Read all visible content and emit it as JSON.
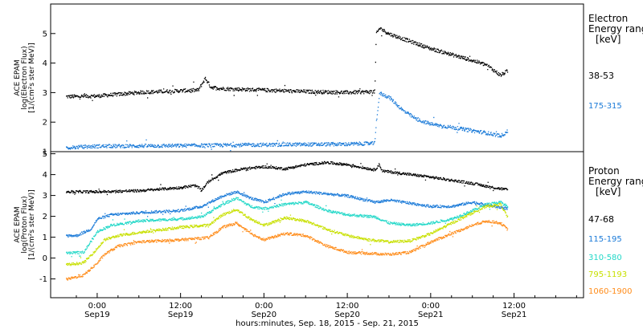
{
  "chart_data": [
    {
      "type": "scatter",
      "ylabel": [
        "ACE EPAM",
        "log(Electron Flux)",
        "[1/(cm²s ster MeV)]"
      ],
      "ylim": [
        1,
        6
      ],
      "yticks": [
        "1",
        "2",
        "3",
        "4",
        "5"
      ],
      "legend_title": [
        "Electron",
        "Energy range",
        "[keV]"
      ],
      "series": [
        {
          "name": "38-53",
          "color": "#000000",
          "points": [
            [
              -4.5,
              2.88
            ],
            [
              0,
              2.9
            ],
            [
              6,
              3.02
            ],
            [
              12,
              3.08
            ],
            [
              14.5,
              3.1
            ],
            [
              15.5,
              3.5
            ],
            [
              16.3,
              3.2
            ],
            [
              18,
              3.15
            ],
            [
              30,
              3.05
            ],
            [
              36,
              3.02
            ],
            [
              39.9,
              3.05
            ],
            [
              40.1,
              5.0
            ],
            [
              40.6,
              5.2
            ],
            [
              42,
              5.0
            ],
            [
              48,
              4.5
            ],
            [
              54,
              4.1
            ],
            [
              56,
              3.95
            ],
            [
              58,
              3.6
            ],
            [
              59,
              3.75
            ]
          ]
        },
        {
          "name": "175-315",
          "color": "#1a7ad8",
          "points": [
            [
              -4.5,
              1.15
            ],
            [
              0,
              1.2
            ],
            [
              12,
              1.22
            ],
            [
              24,
              1.25
            ],
            [
              36,
              1.27
            ],
            [
              39.9,
              1.3
            ],
            [
              40.1,
              2.0
            ],
            [
              40.6,
              3.0
            ],
            [
              42,
              2.85
            ],
            [
              44,
              2.4
            ],
            [
              46,
              2.1
            ],
            [
              48,
              1.95
            ],
            [
              52,
              1.8
            ],
            [
              56,
              1.65
            ],
            [
              58,
              1.55
            ],
            [
              59,
              1.7
            ]
          ]
        }
      ]
    },
    {
      "type": "scatter",
      "ylabel": [
        "ACE EPAM",
        "log(Proton Flux)",
        "[1/(cm²s ster MeV)]"
      ],
      "ylim": [
        -1.9,
        5.1
      ],
      "yticks": [
        "-1",
        "0",
        "1",
        "2",
        "3",
        "4",
        "5"
      ],
      "xlabel": "hours:minutes, Sep. 18, 2015 - Sep. 21, 2015",
      "xticks": [
        {
          "x": 0,
          "time": "0:00",
          "date": "Sep19"
        },
        {
          "x": 12,
          "time": "12:00",
          "date": "Sep19"
        },
        {
          "x": 24,
          "time": "0:00",
          "date": "Sep20"
        },
        {
          "x": 36,
          "time": "12:00",
          "date": "Sep20"
        },
        {
          "x": 48,
          "time": "0:00",
          "date": "Sep21"
        },
        {
          "x": 60,
          "time": "12:00",
          "date": "Sep21"
        }
      ],
      "xlim": [
        -6.7,
        70
      ],
      "legend_title": [
        "Proton",
        "Energy range",
        "[keV]"
      ],
      "series": [
        {
          "name": "47-68",
          "color": "#000000",
          "points": [
            [
              -4.5,
              3.2
            ],
            [
              0,
              3.2
            ],
            [
              6,
              3.25
            ],
            [
              12,
              3.4
            ],
            [
              14,
              3.5
            ],
            [
              15,
              3.3
            ],
            [
              16,
              3.7
            ],
            [
              18,
              4.1
            ],
            [
              21,
              4.3
            ],
            [
              24,
              4.4
            ],
            [
              27,
              4.3
            ],
            [
              30,
              4.5
            ],
            [
              33,
              4.6
            ],
            [
              36,
              4.5
            ],
            [
              39.9,
              4.25
            ],
            [
              40.5,
              4.5
            ],
            [
              41,
              4.2
            ],
            [
              48,
              3.9
            ],
            [
              54,
              3.6
            ],
            [
              57,
              3.4
            ],
            [
              59,
              3.3
            ]
          ]
        },
        {
          "name": "115-195",
          "color": "#1a7ad8",
          "points": [
            [
              -4.5,
              1.1
            ],
            [
              -3,
              1.1
            ],
            [
              -1,
              1.4
            ],
            [
              0,
              1.9
            ],
            [
              2,
              2.1
            ],
            [
              6,
              2.2
            ],
            [
              12,
              2.3
            ],
            [
              15,
              2.5
            ],
            [
              18,
              3.0
            ],
            [
              20,
              3.2
            ],
            [
              22,
              2.9
            ],
            [
              24,
              2.7
            ],
            [
              27,
              3.1
            ],
            [
              30,
              3.2
            ],
            [
              36,
              3.0
            ],
            [
              39.9,
              2.7
            ],
            [
              42,
              2.8
            ],
            [
              46,
              2.6
            ],
            [
              48,
              2.5
            ],
            [
              51,
              2.5
            ],
            [
              54,
              2.7
            ],
            [
              57,
              2.5
            ],
            [
              59,
              2.4
            ]
          ]
        },
        {
          "name": "310-580",
          "color": "#22d8c8",
          "points": [
            [
              -4.5,
              0.25
            ],
            [
              -2,
              0.3
            ],
            [
              -1,
              0.8
            ],
            [
              0,
              1.3
            ],
            [
              2,
              1.6
            ],
            [
              6,
              1.8
            ],
            [
              12,
              1.9
            ],
            [
              15,
              2.0
            ],
            [
              18,
              2.6
            ],
            [
              20,
              2.9
            ],
            [
              22,
              2.5
            ],
            [
              24,
              2.4
            ],
            [
              27,
              2.6
            ],
            [
              30,
              2.7
            ],
            [
              33,
              2.3
            ],
            [
              36,
              2.1
            ],
            [
              39.9,
              2.0
            ],
            [
              42,
              1.7
            ],
            [
              45,
              1.6
            ],
            [
              48,
              1.7
            ],
            [
              51,
              1.9
            ],
            [
              54,
              2.3
            ],
            [
              56,
              2.6
            ],
            [
              58,
              2.7
            ],
            [
              59,
              2.5
            ]
          ]
        },
        {
          "name": "795-1193",
          "color": "#c8e000",
          "points": [
            [
              -4.5,
              -0.3
            ],
            [
              -2,
              -0.2
            ],
            [
              0,
              0.5
            ],
            [
              1,
              0.9
            ],
            [
              3,
              1.1
            ],
            [
              6,
              1.25
            ],
            [
              12,
              1.5
            ],
            [
              16,
              1.6
            ],
            [
              18,
              2.1
            ],
            [
              20,
              2.35
            ],
            [
              22,
              1.9
            ],
            [
              24,
              1.6
            ],
            [
              27,
              1.95
            ],
            [
              30,
              1.8
            ],
            [
              33,
              1.4
            ],
            [
              36,
              1.1
            ],
            [
              39,
              0.9
            ],
            [
              42,
              0.8
            ],
            [
              45,
              0.85
            ],
            [
              48,
              1.2
            ],
            [
              51,
              1.7
            ],
            [
              54,
              2.2
            ],
            [
              56,
              2.5
            ],
            [
              58,
              2.6
            ],
            [
              59,
              2.0
            ]
          ]
        },
        {
          "name": "1060-1900",
          "color": "#ff8c1a",
          "points": [
            [
              -4.5,
              -1.0
            ],
            [
              -2,
              -0.8
            ],
            [
              0,
              -0.2
            ],
            [
              1,
              0.2
            ],
            [
              3,
              0.6
            ],
            [
              6,
              0.8
            ],
            [
              12,
              0.9
            ],
            [
              16,
              1.0
            ],
            [
              18,
              1.5
            ],
            [
              20,
              1.7
            ],
            [
              22,
              1.2
            ],
            [
              24,
              0.9
            ],
            [
              27,
              1.2
            ],
            [
              30,
              1.1
            ],
            [
              33,
              0.6
            ],
            [
              36,
              0.3
            ],
            [
              39,
              0.25
            ],
            [
              42,
              0.2
            ],
            [
              45,
              0.3
            ],
            [
              48,
              0.8
            ],
            [
              51,
              1.2
            ],
            [
              54,
              1.6
            ],
            [
              56,
              1.8
            ],
            [
              58,
              1.7
            ],
            [
              59,
              1.4
            ]
          ]
        }
      ]
    }
  ]
}
